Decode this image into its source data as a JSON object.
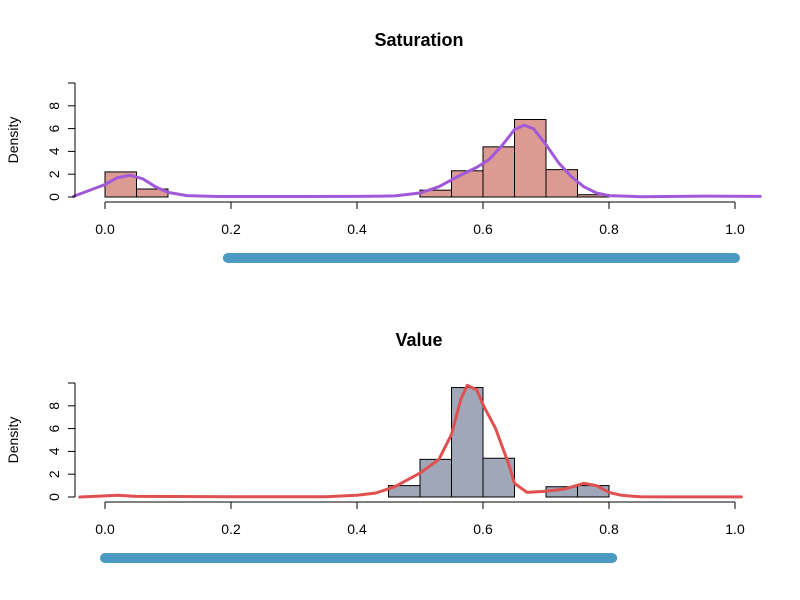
{
  "chart_data": [
    {
      "type": "bar",
      "title": "Saturation",
      "xlabel": "",
      "ylabel": "Density",
      "xlim": [
        0,
        1
      ],
      "ylim": [
        0,
        10
      ],
      "x_ticks": [
        "0.0",
        "0.2",
        "0.4",
        "0.6",
        "0.8",
        "1.0"
      ],
      "y_ticks": [
        "0",
        "2",
        "4",
        "6",
        "8"
      ],
      "bin_width": 0.05,
      "bins": [
        {
          "x0": 0.0,
          "value": 2.2
        },
        {
          "x0": 0.05,
          "value": 0.7
        },
        {
          "x0": 0.5,
          "value": 0.6
        },
        {
          "x0": 0.55,
          "value": 2.3
        },
        {
          "x0": 0.6,
          "value": 4.4
        },
        {
          "x0": 0.65,
          "value": 6.8
        },
        {
          "x0": 0.7,
          "value": 2.4
        },
        {
          "x0": 0.75,
          "value": 0.2
        }
      ],
      "bar_color": "#dc9b92",
      "density_curve": {
        "color": "#a259d9",
        "x": [
          -0.05,
          0.0,
          0.02,
          0.04,
          0.06,
          0.08,
          0.1,
          0.13,
          0.18,
          0.3,
          0.4,
          0.46,
          0.5,
          0.53,
          0.56,
          0.59,
          0.61,
          0.63,
          0.65,
          0.665,
          0.68,
          0.7,
          0.72,
          0.74,
          0.76,
          0.78,
          0.8,
          0.85,
          0.95,
          1.04
        ],
        "y": [
          0.05,
          1.1,
          1.7,
          1.9,
          1.6,
          0.9,
          0.4,
          0.12,
          0.04,
          0.04,
          0.05,
          0.1,
          0.35,
          0.9,
          1.8,
          2.6,
          3.3,
          4.5,
          5.9,
          6.3,
          6.0,
          4.6,
          3.0,
          1.8,
          0.9,
          0.35,
          0.12,
          0.03,
          0.08,
          0.05
        ]
      },
      "range_bar": {
        "from": 0.195,
        "to": 1.0,
        "color": "#4a9ac1"
      }
    },
    {
      "type": "bar",
      "title": "Value",
      "xlabel": "",
      "ylabel": "Density",
      "xlim": [
        0,
        1
      ],
      "ylim": [
        0,
        10
      ],
      "x_ticks": [
        "0.0",
        "0.2",
        "0.4",
        "0.6",
        "0.8",
        "1.0"
      ],
      "y_ticks": [
        "0",
        "2",
        "4",
        "6",
        "8"
      ],
      "bin_width": 0.05,
      "bins": [
        {
          "x0": 0.45,
          "value": 1.0
        },
        {
          "x0": 0.5,
          "value": 3.3
        },
        {
          "x0": 0.55,
          "value": 9.6
        },
        {
          "x0": 0.6,
          "value": 3.4
        },
        {
          "x0": 0.7,
          "value": 0.9
        },
        {
          "x0": 0.75,
          "value": 1.0
        }
      ],
      "bar_color": "#9fa7b8",
      "density_curve": {
        "color": "#e05050",
        "x": [
          -0.04,
          0.0,
          0.02,
          0.05,
          0.2,
          0.35,
          0.4,
          0.43,
          0.46,
          0.5,
          0.53,
          0.55,
          0.565,
          0.575,
          0.59,
          0.6,
          0.62,
          0.64,
          0.65,
          0.67,
          0.7,
          0.73,
          0.76,
          0.78,
          0.8,
          0.82,
          0.85,
          0.9,
          1.01
        ],
        "y": [
          0.0,
          0.1,
          0.15,
          0.05,
          0.02,
          0.02,
          0.15,
          0.35,
          0.9,
          2.1,
          3.3,
          5.5,
          8.6,
          9.8,
          9.4,
          8.1,
          6.0,
          3.0,
          1.2,
          0.4,
          0.5,
          0.7,
          1.2,
          1.0,
          0.4,
          0.15,
          0.02,
          0.01,
          0.01
        ]
      },
      "range_bar": {
        "from": 0.0,
        "to": 0.805,
        "color": "#4a9ac1"
      }
    }
  ]
}
